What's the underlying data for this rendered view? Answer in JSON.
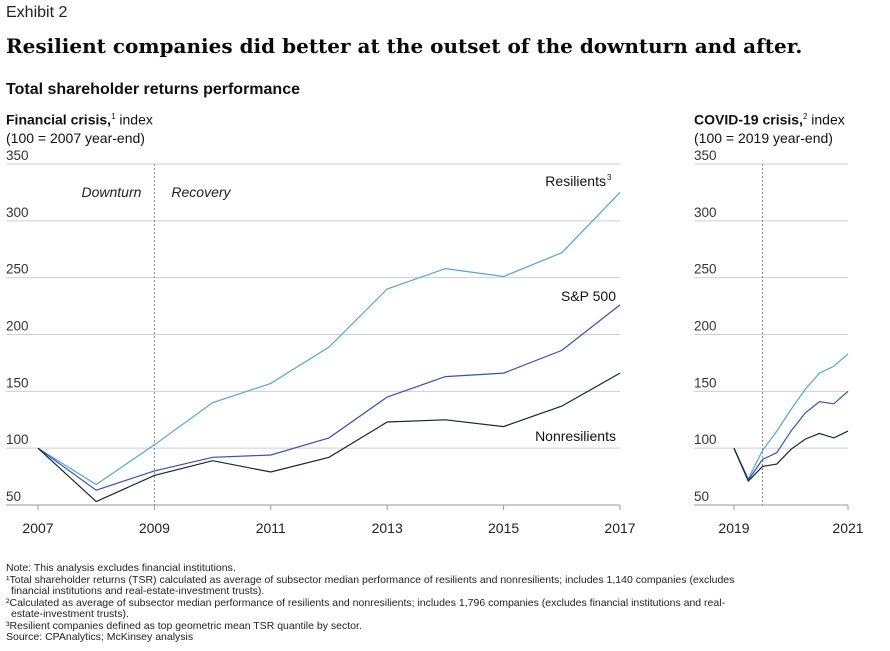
{
  "exhibit": "Exhibit 2",
  "headline": "Resilient companies did better at the outset of the downturn and after.",
  "subtitle": "Total shareholder returns performance",
  "panels": {
    "left": {
      "title": "Financial crisis,",
      "sup": "1",
      "suffix": " index",
      "sub": "(100 = 2007 year-end)"
    },
    "right": {
      "title": "COVID-19 crisis,",
      "sup": "2",
      "suffix": " index",
      "sub": "(100 = 2019 year-end)"
    }
  },
  "colors": {
    "resilients": "#4aa8e8",
    "sp500": "#2f4fd6",
    "nonresilients": "#1c2333",
    "grid": "#cfcfcf",
    "divider": "#888888"
  },
  "chart_data": [
    {
      "type": "line",
      "name": "financial-crisis",
      "xlim": [
        2007,
        2017
      ],
      "ylim": [
        50,
        350
      ],
      "yticks": [
        50,
        100,
        150,
        200,
        250,
        300,
        350
      ],
      "xticks": [
        2007,
        2009,
        2011,
        2013,
        2015,
        2017
      ],
      "divider_x": 2009,
      "phase_labels": [
        "Downturn",
        "Recovery"
      ],
      "x": [
        2007,
        2008,
        2009,
        2010,
        2011,
        2012,
        2013,
        2014,
        2015,
        2016,
        2017
      ],
      "series": [
        {
          "name": "Resilients",
          "sup": "3",
          "key": "resilients",
          "values": [
            100,
            68,
            103,
            140,
            157,
            189,
            240,
            258,
            251,
            272,
            325
          ]
        },
        {
          "name": "S&P 500",
          "sup": "",
          "key": "sp500",
          "values": [
            100,
            63,
            80,
            92,
            94,
            109,
            145,
            163,
            166,
            186,
            226
          ]
        },
        {
          "name": "Nonresilients",
          "sup": "",
          "key": "nonresilients",
          "values": [
            100,
            53,
            76,
            89,
            79,
            92,
            123,
            125,
            119,
            137,
            166
          ]
        }
      ]
    },
    {
      "type": "line",
      "name": "covid-crisis",
      "xlim": [
        2019,
        2021
      ],
      "ylim": [
        50,
        350
      ],
      "yticks": [
        50,
        100,
        150,
        200,
        250,
        300,
        350
      ],
      "xticks": [
        2019,
        2021
      ],
      "divider_x": 2019.5,
      "x": [
        2019,
        2019.25,
        2019.5,
        2019.75,
        2020,
        2020.25,
        2020.5,
        2020.75,
        2021
      ],
      "series": [
        {
          "name": "Resilients",
          "key": "resilients",
          "values": [
            100,
            73,
            98,
            115,
            134,
            152,
            166,
            172,
            183
          ]
        },
        {
          "name": "S&P 500",
          "key": "sp500",
          "values": [
            100,
            72,
            90,
            96,
            115,
            131,
            141,
            139,
            150
          ]
        },
        {
          "name": "Nonresilients",
          "key": "nonresilients",
          "values": [
            100,
            71,
            84,
            86,
            99,
            108,
            113,
            109,
            115
          ]
        }
      ]
    }
  ],
  "notes": [
    "Note: This analysis excludes financial institutions.",
    "¹Total shareholder returns (TSR) calculated as average of subsector median performance of resilients and nonresilients; includes 1,140 companies (excludes",
    "financial institutions and real-estate-investment trusts).",
    "²Calculated as average of subsector median performance of resilients and nonresilients; includes 1,796 companies (excludes financial institutions and real-",
    "estate-investment trusts).",
    "³Resilient companies defined as top geometric mean TSR quantile by sector.",
    "Source: CPAnalytics; McKinsey analysis"
  ]
}
